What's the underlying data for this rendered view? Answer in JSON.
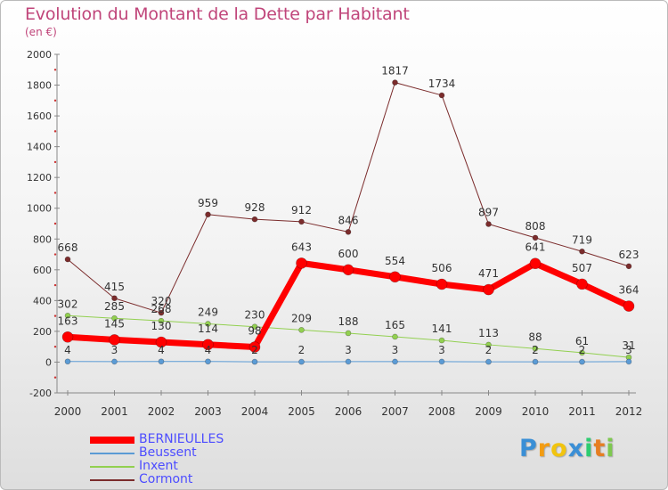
{
  "title": "Evolution du Montant de la Dette par Habitant",
  "subtitle": "(en €)",
  "logo": {
    "text": "Proxiti",
    "letters": [
      {
        "ch": "P",
        "color": "#3a8fd6"
      },
      {
        "ch": "r",
        "color": "#f39c12"
      },
      {
        "ch": "o",
        "color": "#f1c40f"
      },
      {
        "ch": "x",
        "color": "#3a8fd6"
      },
      {
        "ch": "i",
        "color": "#2ecc71"
      },
      {
        "ch": "t",
        "color": "#e67e22"
      },
      {
        "ch": "i",
        "color": "#7ec850"
      }
    ]
  },
  "chart_data": {
    "type": "line",
    "title": "Evolution du Montant de la Dette par Habitant",
    "subtitle": "(en €)",
    "x": [
      "2000",
      "2001",
      "2002",
      "2003",
      "2004",
      "2005",
      "2006",
      "2007",
      "2008",
      "2009",
      "2010",
      "2011",
      "2012"
    ],
    "ylim": [
      -200,
      2000
    ],
    "yticks": [
      -200,
      0,
      200,
      400,
      600,
      800,
      1000,
      1200,
      1400,
      1600,
      1800,
      2000
    ],
    "grid": false,
    "legend_position": "bottom-left",
    "series": [
      {
        "name": "BERNIEULLES",
        "color": "#ff0000",
        "values": [
          163,
          145,
          130,
          114,
          98,
          643,
          600,
          554,
          506,
          471,
          641,
          507,
          364
        ]
      },
      {
        "name": "Beussent",
        "color": "#5b9bd5",
        "values": [
          4,
          3,
          4,
          4,
          2,
          2,
          3,
          3,
          3,
          2,
          2,
          2,
          3
        ]
      },
      {
        "name": "Inxent",
        "color": "#92d050",
        "values": [
          302,
          285,
          268,
          249,
          230,
          209,
          188,
          165,
          141,
          113,
          88,
          61,
          31
        ]
      },
      {
        "name": "Cormont",
        "color": "#7b2c2c",
        "values": [
          668,
          415,
          320,
          959,
          928,
          912,
          846,
          1817,
          1734,
          897,
          808,
          719,
          623
        ]
      }
    ],
    "label_order": [
      "Beussent",
      "Inxent",
      "BERNIEULLES",
      "Cormont"
    ]
  }
}
